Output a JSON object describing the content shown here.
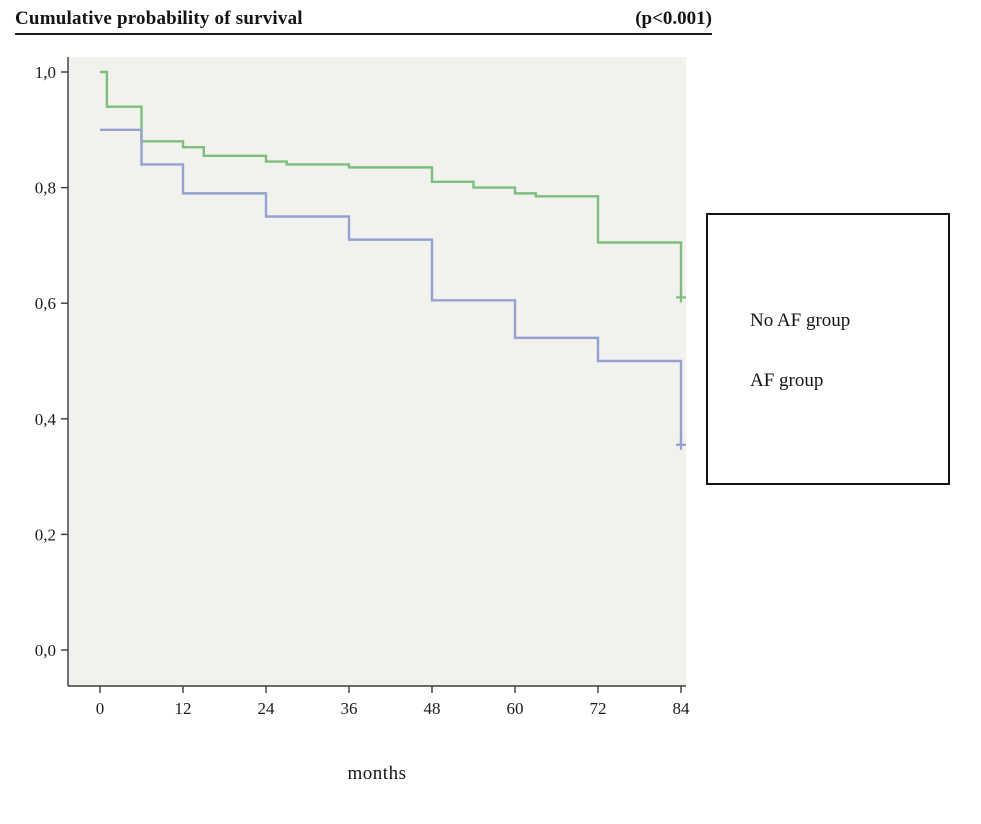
{
  "header": {
    "title": "Cumulative probability of survival",
    "p_value": "(p<0.001)"
  },
  "chart_data": {
    "type": "line",
    "subtype": "kaplan-meier-step",
    "title": "Cumulative probability of survival",
    "annotation": "(p<0.001)",
    "xlabel": "months",
    "ylabel": "Cumulative probability of survival",
    "xlim": [
      0,
      84
    ],
    "ylim": [
      0.0,
      1.0
    ],
    "xticks": [
      0,
      12,
      24,
      36,
      48,
      60,
      72,
      84
    ],
    "ytick_labels": [
      "0,0",
      "0,2",
      "0,4",
      "0,6",
      "0,8",
      "1,0"
    ],
    "ytick_values": [
      0.0,
      0.2,
      0.4,
      0.6,
      0.8,
      1.0
    ],
    "grid": false,
    "plot_bg": "#f1f1ee",
    "axis_color": "#3a3a3a",
    "legend_position": "right",
    "series": [
      {
        "name": "No AF group",
        "color": "#7dbe7d",
        "points": [
          [
            0,
            1.0
          ],
          [
            1,
            0.94
          ],
          [
            6,
            0.88
          ],
          [
            12,
            0.87
          ],
          [
            15,
            0.855
          ],
          [
            24,
            0.845
          ],
          [
            27,
            0.84
          ],
          [
            36,
            0.835
          ],
          [
            48,
            0.81
          ],
          [
            54,
            0.8
          ],
          [
            60,
            0.79
          ],
          [
            63,
            0.785
          ],
          [
            72,
            0.705
          ],
          [
            84,
            0.61
          ]
        ],
        "censor": [
          [
            84,
            0.61
          ]
        ]
      },
      {
        "name": "AF group",
        "color": "#95a2d1",
        "points": [
          [
            0,
            0.9
          ],
          [
            6,
            0.84
          ],
          [
            12,
            0.79
          ],
          [
            24,
            0.75
          ],
          [
            36,
            0.71
          ],
          [
            48,
            0.605
          ],
          [
            60,
            0.54
          ],
          [
            72,
            0.5
          ],
          [
            84,
            0.355
          ]
        ],
        "censor": [
          [
            84,
            0.355
          ]
        ]
      }
    ]
  }
}
